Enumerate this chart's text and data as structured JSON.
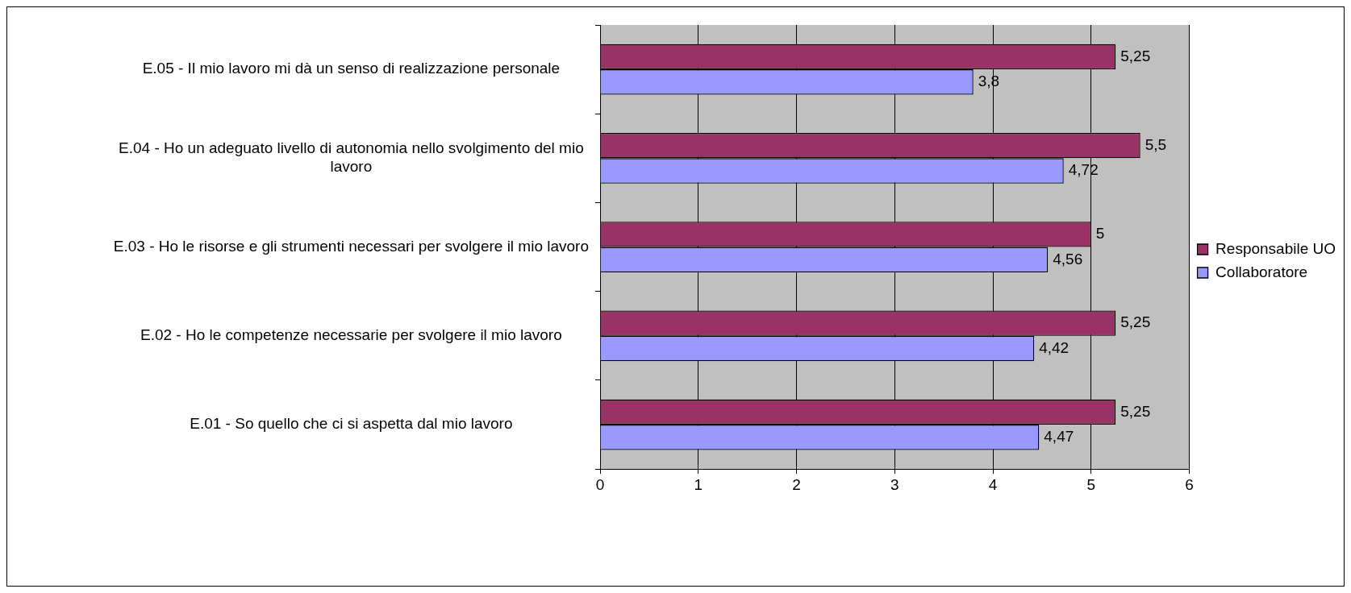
{
  "chart_data": {
    "type": "bar",
    "orientation": "horizontal",
    "categories": [
      "E.05 - Il mio lavoro mi dà un senso di realizzazione personale",
      "E.04 - Ho un adeguato livello di autonomia nello svolgimento del mio lavoro",
      "E.03 - Ho le risorse e gli strumenti necessari per svolgere il mio lavoro",
      "E.02 - Ho le competenze necessarie per svolgere il mio lavoro",
      "E.01 - So quello che ci si aspetta dal mio lavoro"
    ],
    "series": [
      {
        "name": "Responsabile UO",
        "color": "#993366",
        "values": [
          5.25,
          5.5,
          5,
          5.25,
          5.25
        ],
        "value_labels": [
          "5,25",
          "5,5",
          "5",
          "5,25",
          "5,25"
        ]
      },
      {
        "name": "Collaboratore",
        "color": "#9999ff",
        "values": [
          3.8,
          4.72,
          4.56,
          4.42,
          4.47
        ],
        "value_labels": [
          "3,8",
          "4,72",
          "4,56",
          "4,42",
          "4,47"
        ]
      }
    ],
    "xlim": [
      0,
      6
    ],
    "xticks": [
      0,
      1,
      2,
      3,
      4,
      5,
      6
    ],
    "grid": "x",
    "legend": "right"
  }
}
